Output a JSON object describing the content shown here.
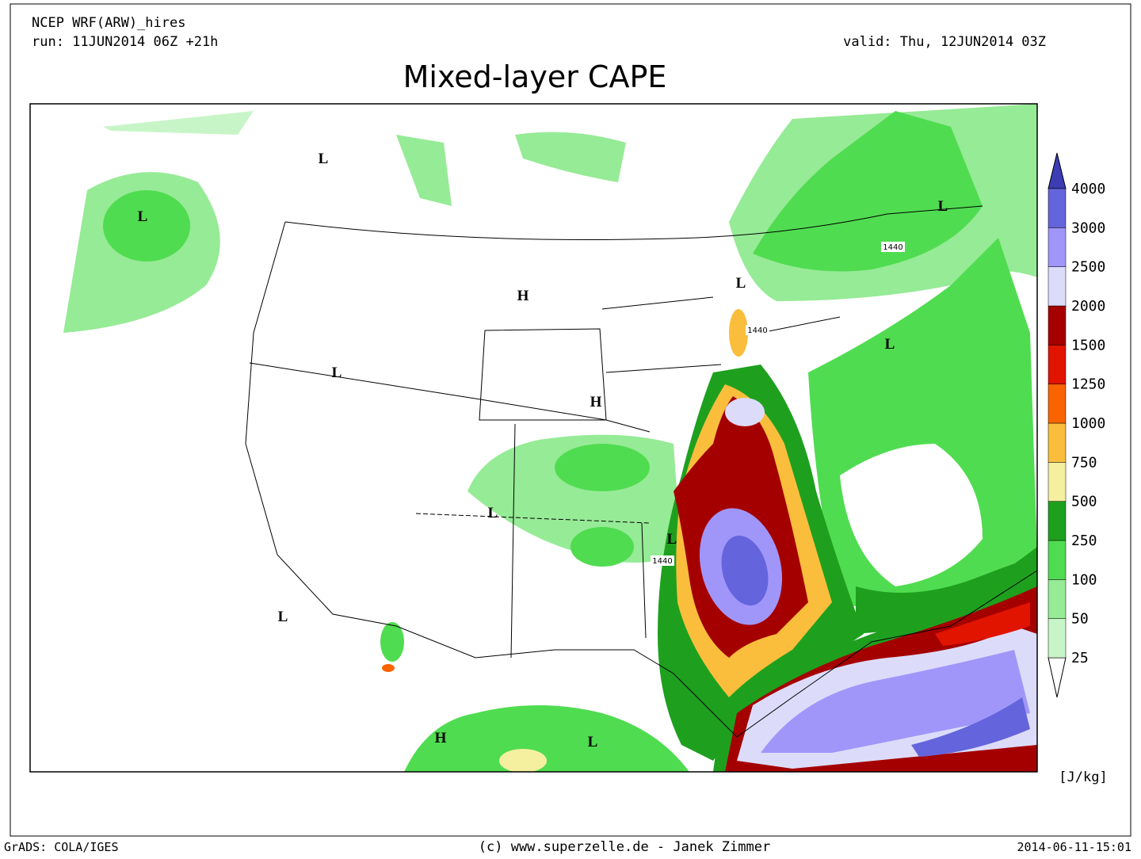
{
  "header": {
    "model": "NCEP WRF(ARW)_hires",
    "run": "run: 11JUN2014 06Z +21h",
    "valid": "valid: Thu, 12JUN2014 03Z",
    "title": "Mixed-layer CAPE"
  },
  "colorbar": {
    "levels": [
      25,
      50,
      100,
      250,
      500,
      750,
      1000,
      1250,
      1500,
      2000,
      2500,
      3000,
      4000
    ],
    "colors": [
      "#ffffff",
      "#c8f5c8",
      "#96eb96",
      "#50dc50",
      "#1ea01e",
      "#f5f0a0",
      "#fabe3c",
      "#fa6400",
      "#e11400",
      "#a50000",
      "#dcdcfa",
      "#a096fa",
      "#6464dc",
      "#3c3cb4"
    ],
    "unit": "[J/kg]"
  },
  "map": {
    "labels": [
      "L",
      "L",
      "H",
      "L",
      "L",
      "L",
      "L",
      "H",
      "L",
      "L",
      "L",
      "H",
      "L"
    ],
    "contours": [
      "1440",
      "1440",
      "1440"
    ]
  },
  "footer": {
    "left": "GrADS: COLA/IGES",
    "center": "(c) www.superzelle.de - Janek Zimmer",
    "right": "2014-06-11-15:01"
  }
}
